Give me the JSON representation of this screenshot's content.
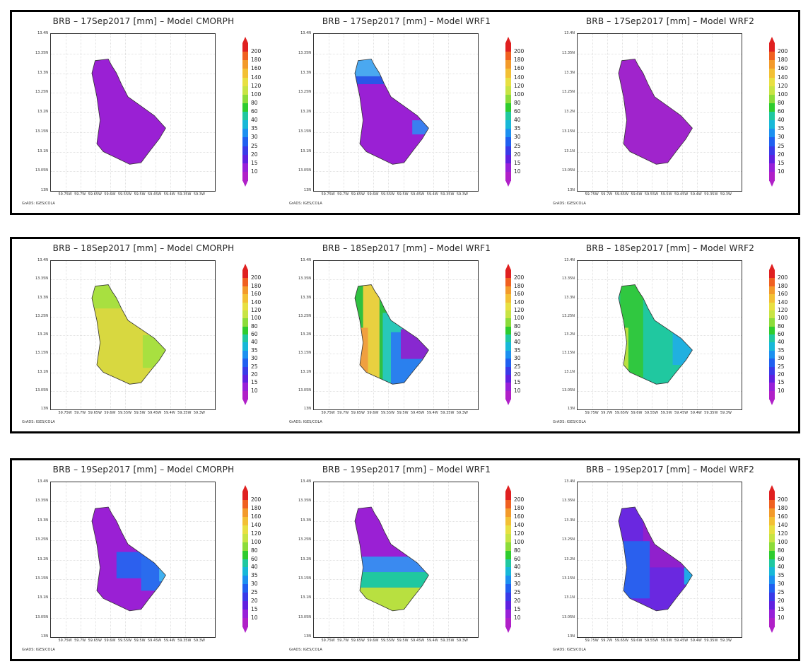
{
  "rows": [
    {
      "panels": [
        {
          "title": "BRB – 17Sep2017 [mm] – Model CMORPH",
          "pattern": "r1p1"
        },
        {
          "title": "BRB – 17Sep2017 [mm] – Model WRF1",
          "pattern": "r1p2"
        },
        {
          "title": "BRB – 17Sep2017 [mm] – Model WRF2",
          "pattern": "r1p3"
        }
      ]
    },
    {
      "panels": [
        {
          "title": "BRB – 18Sep2017 [mm] – Model CMORPH",
          "pattern": "r2p1"
        },
        {
          "title": "BRB – 18Sep2017 [mm] – Model WRF1",
          "pattern": "r2p2"
        },
        {
          "title": "BRB – 18Sep2017 [mm] – Model WRF2",
          "pattern": "r2p3"
        }
      ]
    },
    {
      "panels": [
        {
          "title": "BRB – 19Sep2017 [mm] – Model CMORPH",
          "pattern": "r3p1"
        },
        {
          "title": "BRB – 19Sep2017 [mm] – Model WRF1",
          "pattern": "r3p2"
        },
        {
          "title": "BRB – 19Sep2017 [mm] – Model WRF2",
          "pattern": "r3p3"
        }
      ]
    }
  ],
  "y_ticks": [
    "13.4N",
    "13.35N",
    "13.3N",
    "13.25N",
    "13.2N",
    "13.15N",
    "13.1N",
    "13.05N",
    "13N"
  ],
  "x_ticks": [
    "59.75W",
    "59.7W",
    "59.65W",
    "59.6W",
    "59.55W",
    "59.5W",
    "59.45W",
    "59.4W",
    "59.35W",
    "59.3W"
  ],
  "credit": "GrADS: IGES/COLA",
  "legend": {
    "levels": [
      "200",
      "180",
      "160",
      "140",
      "120",
      "100",
      "80",
      "60",
      "40",
      "35",
      "30",
      "25",
      "20",
      "15",
      "10"
    ],
    "colors": [
      "#e02020",
      "#f06020",
      "#f39a2a",
      "#f3c034",
      "#e8e042",
      "#c8e444",
      "#8cdc3a",
      "#2ecc2e",
      "#20c8a0",
      "#18b8d8",
      "#1c90f0",
      "#2060f0",
      "#3a3ae8",
      "#6020e0",
      "#9820d8",
      "#b020c8"
    ]
  }
}
